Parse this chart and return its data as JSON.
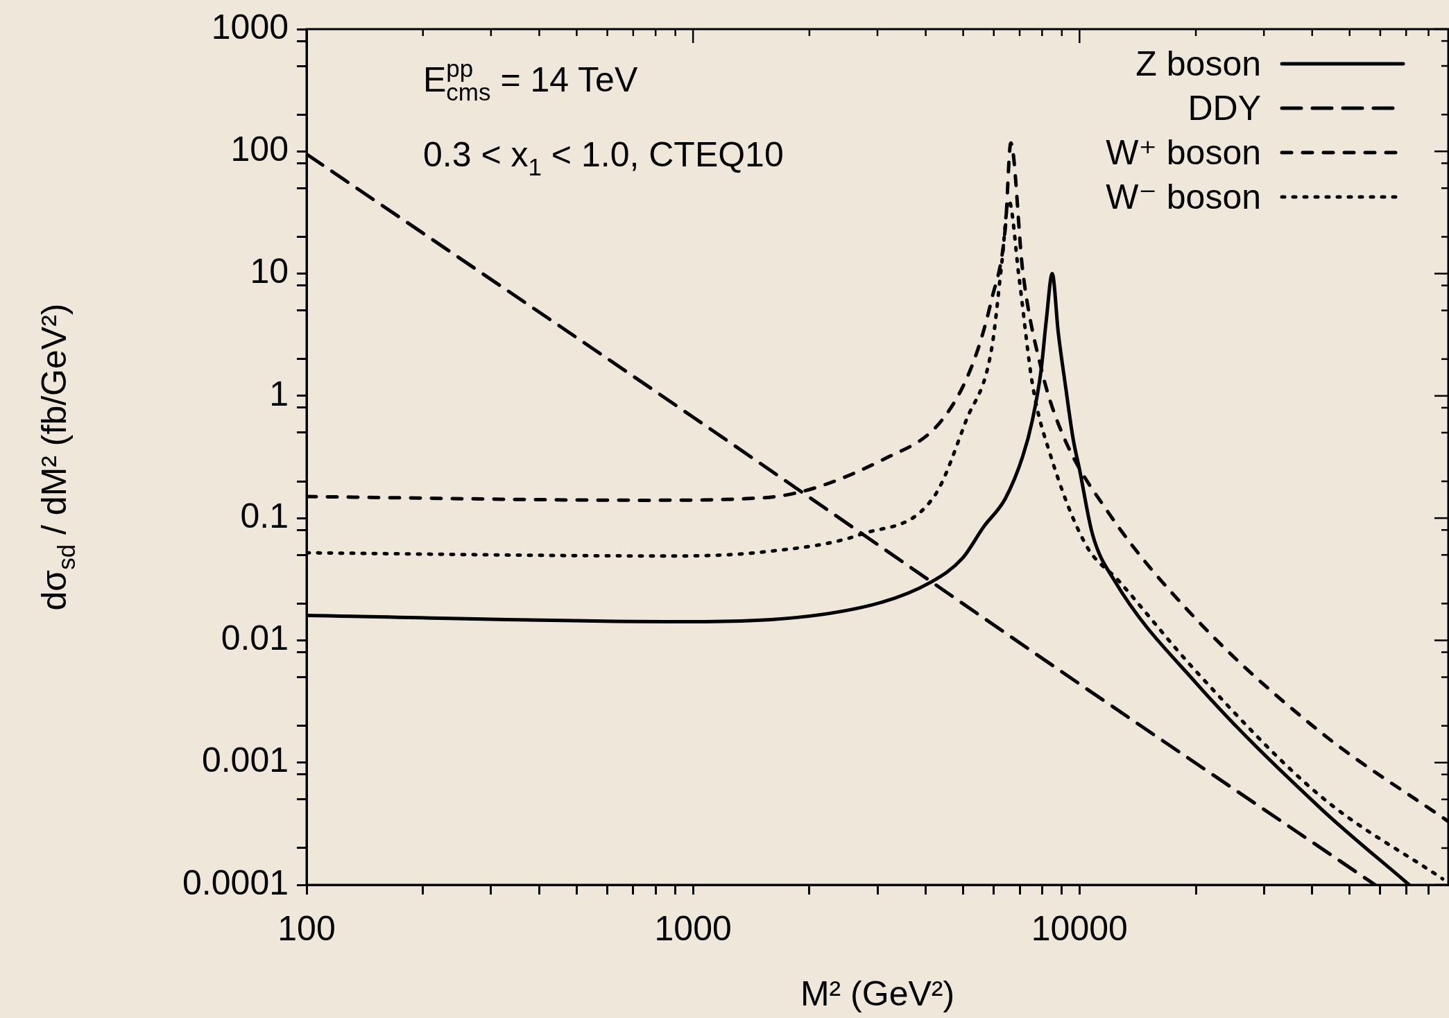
{
  "chart_data": {
    "type": "line",
    "xlabel": "M² (GeV²)",
    "ylabel": "dσ$_{sd}$ / dM² (fb/GeV²)",
    "annotations": [
      "E$^{pp}$$_{cms}$ = 14 TeV",
      "0.3 < x$_{1}$ < 1.0, CTEQ10"
    ],
    "log": "xy",
    "grid": false,
    "legend": "top right",
    "xlim": [
      100,
      90000
    ],
    "ylim": [
      0.0001,
      1000
    ],
    "xticks": [
      100,
      {
        "value": 200,
        "label": null
      },
      {
        "value": 300,
        "label": null
      },
      {
        "value": 400,
        "label": null
      },
      {
        "value": 500,
        "label": null
      },
      {
        "value": 600,
        "label": null
      },
      {
        "value": 700,
        "label": null
      },
      {
        "value": 800,
        "label": null
      },
      {
        "value": 900,
        "label": null
      },
      1000,
      {
        "value": 2000,
        "label": null
      },
      {
        "value": 3000,
        "label": null
      },
      {
        "value": 4000,
        "label": null
      },
      {
        "value": 5000,
        "label": null
      },
      {
        "value": 6000,
        "label": null
      },
      {
        "value": 7000,
        "label": null
      },
      {
        "value": 8000,
        "label": null
      },
      {
        "value": 9000,
        "label": null
      },
      10000,
      {
        "value": 20000,
        "label": null
      },
      {
        "value": 30000,
        "label": null
      },
      {
        "value": 40000,
        "label": null
      },
      {
        "value": 50000,
        "label": null
      },
      {
        "value": 60000,
        "label": null
      },
      {
        "value": 70000,
        "label": null
      },
      {
        "value": 80000,
        "label": null
      }
    ],
    "yticks": [
      0.0001,
      {
        "value": 0.0002,
        "label": null
      },
      {
        "value": 0.0005,
        "label": null
      },
      {
        "value": 0.0008,
        "label": null
      },
      0.001,
      {
        "value": 0.002,
        "label": null
      },
      {
        "value": 0.005,
        "label": null
      },
      {
        "value": 0.008,
        "label": null
      },
      0.01,
      {
        "value": 0.02,
        "label": null
      },
      {
        "value": 0.05,
        "label": null
      },
      {
        "value": 0.08,
        "label": null
      },
      0.1,
      {
        "value": 0.2,
        "label": null
      },
      {
        "value": 0.5,
        "label": null
      },
      {
        "value": 0.8,
        "label": null
      },
      1,
      {
        "value": 2,
        "label": null
      },
      {
        "value": 5,
        "label": null
      },
      {
        "value": 8,
        "label": null
      },
      10,
      {
        "value": 20,
        "label": null
      },
      {
        "value": 50,
        "label": null
      },
      {
        "value": 80,
        "label": null
      },
      100,
      {
        "value": 200,
        "label": null
      },
      {
        "value": 500,
        "label": null
      },
      {
        "value": 800,
        "label": null
      },
      1000
    ],
    "series": [
      {
        "name": "Z boson",
        "color": "#000000",
        "line_style": "solid",
        "x": [
          100,
          930,
          2730,
          4130,
          4980,
          5650,
          6430,
          7130,
          7550,
          7950,
          8200,
          8500,
          8810,
          9200,
          9620,
          10000,
          10800,
          12300,
          20000,
          41800,
          71300
        ],
        "values": [
          0.016,
          0.0142,
          0.0186,
          0.03,
          0.047,
          0.085,
          0.145,
          0.32,
          0.63,
          1.6,
          4.1,
          10,
          3.3,
          1.2,
          0.45,
          0.25,
          0.074,
          0.031,
          0.0045,
          0.00043,
          0.0001
        ]
      },
      {
        "name": "DDY",
        "color": "#000000",
        "line_style": "dashed",
        "x": [
          100,
          1000,
          10000,
          58200
        ],
        "values": [
          95,
          0.67,
          0.0044,
          0.0001
        ]
      },
      {
        "name": "W⁺ boson",
        "color": "#000000",
        "line_style": "dashed",
        "x": [
          100,
          740,
          1530,
          3160,
          4400,
          5300,
          5920,
          6430,
          6640,
          7130,
          7950,
          8980,
          11900,
          20000,
          41800,
          90000
        ],
        "values": [
          0.15,
          0.14,
          0.147,
          0.31,
          0.63,
          1.85,
          6.1,
          24,
          117,
          10.5,
          1.7,
          0.51,
          0.11,
          0.015,
          0.0018,
          0.00033
        ]
      },
      {
        "name": "W⁻ boson",
        "color": "#000000",
        "line_style": "dotted",
        "x": [
          100,
          855,
          1530,
          2730,
          4220,
          5090,
          5920,
          6300,
          6560,
          6980,
          7560,
          8430,
          10400,
          12600,
          20000,
          41800,
          87000
        ],
        "values": [
          0.052,
          0.049,
          0.053,
          0.074,
          0.153,
          0.63,
          2.4,
          12.6,
          40,
          9.1,
          1.23,
          0.32,
          0.06,
          0.031,
          0.0056,
          0.00054,
          0.000112
        ]
      }
    ]
  }
}
